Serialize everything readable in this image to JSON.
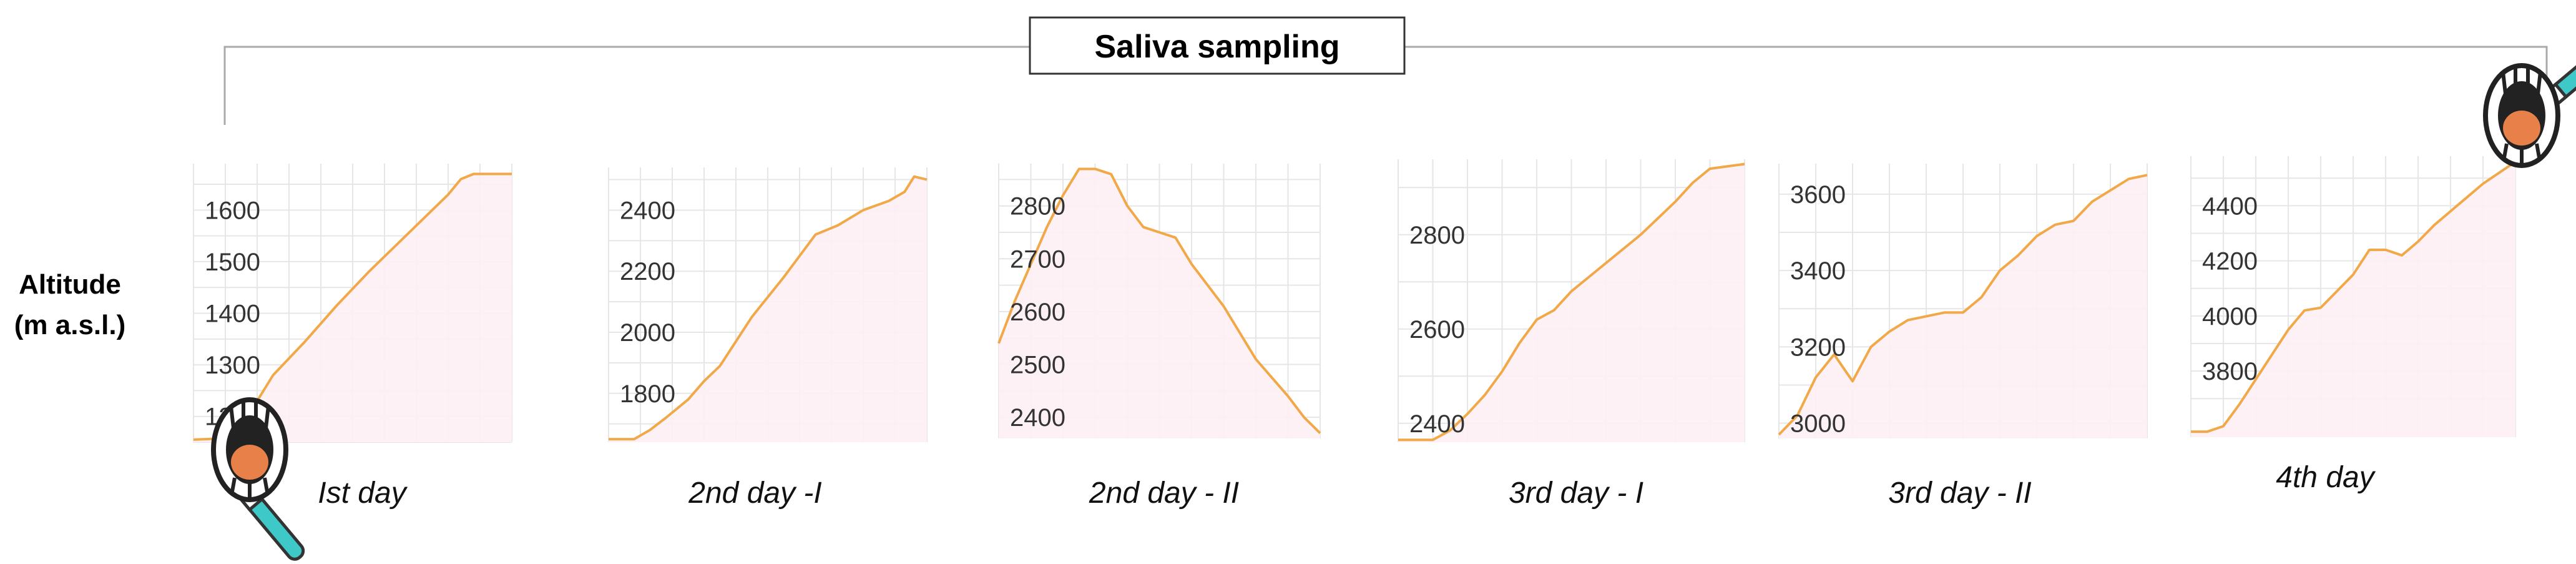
{
  "title": "Saliva sampling",
  "y_axis_label": [
    "Altitude",
    "(m a.s.l.)"
  ],
  "colors": {
    "line": "#F0A848",
    "fill": "#FDEFF4",
    "grid": "#E6E6E6",
    "bracket": "#AAAAAA",
    "tube": "#3FC8C8",
    "tongue": "#E8804A"
  },
  "icons": [
    "mouth-swab-icon-start",
    "mouth-swab-icon-end"
  ],
  "chart_data": [
    {
      "type": "line",
      "label": "Ist day",
      "yticks": [
        1200,
        1300,
        1400,
        1500,
        1600
      ],
      "ylim": [
        1150,
        1690
      ],
      "x": [
        0,
        0.08,
        0.13,
        0.18,
        0.25,
        0.35,
        0.45,
        0.55,
        0.65,
        0.75,
        0.8,
        0.84,
        0.88,
        1
      ],
      "y": [
        1155,
        1157,
        1165,
        1210,
        1280,
        1345,
        1415,
        1480,
        1540,
        1600,
        1630,
        1660,
        1670,
        1670
      ]
    },
    {
      "type": "line",
      "label": "2nd day -I",
      "yticks": [
        1800,
        2000,
        2200,
        2400
      ],
      "ylim": [
        1640,
        2540
      ],
      "x": [
        0,
        0.08,
        0.13,
        0.18,
        0.25,
        0.3,
        0.35,
        0.45,
        0.55,
        0.6,
        0.65,
        0.72,
        0.8,
        0.88,
        0.93,
        0.96,
        1
      ],
      "y": [
        1650,
        1650,
        1680,
        1720,
        1780,
        1840,
        1890,
        2050,
        2180,
        2250,
        2320,
        2350,
        2400,
        2430,
        2460,
        2510,
        2500
      ]
    },
    {
      "type": "line",
      "label": "2nd day - II",
      "yticks": [
        2400,
        2500,
        2600,
        2700,
        2800
      ],
      "ylim": [
        2360,
        2880
      ],
      "x": [
        0,
        0.05,
        0.1,
        0.15,
        0.2,
        0.25,
        0.3,
        0.35,
        0.4,
        0.45,
        0.5,
        0.55,
        0.6,
        0.7,
        0.8,
        0.9,
        0.95,
        1
      ],
      "y": [
        2540,
        2620,
        2690,
        2760,
        2820,
        2870,
        2870,
        2860,
        2800,
        2760,
        2750,
        2740,
        2690,
        2610,
        2510,
        2440,
        2400,
        2370
      ]
    },
    {
      "type": "line",
      "label": "3rd day - I",
      "yticks": [
        2400,
        2600,
        2800
      ],
      "ylim": [
        2360,
        2960
      ],
      "x": [
        0,
        0.1,
        0.15,
        0.2,
        0.25,
        0.3,
        0.35,
        0.4,
        0.45,
        0.5,
        0.55,
        0.6,
        0.7,
        0.8,
        0.85,
        0.9,
        1
      ],
      "y": [
        2365,
        2365,
        2385,
        2420,
        2460,
        2510,
        2570,
        2620,
        2640,
        2680,
        2710,
        2740,
        2800,
        2870,
        2910,
        2940,
        2950
      ]
    },
    {
      "type": "line",
      "label": "3rd day - II",
      "yticks": [
        3000,
        3200,
        3400,
        3600
      ],
      "ylim": [
        2960,
        3680
      ],
      "x": [
        0,
        0.05,
        0.1,
        0.15,
        0.2,
        0.25,
        0.3,
        0.35,
        0.4,
        0.45,
        0.5,
        0.55,
        0.6,
        0.65,
        0.7,
        0.75,
        0.8,
        0.85,
        0.9,
        0.95,
        1
      ],
      "y": [
        2970,
        3020,
        3120,
        3180,
        3110,
        3200,
        3240,
        3270,
        3280,
        3290,
        3290,
        3330,
        3400,
        3440,
        3490,
        3520,
        3530,
        3580,
        3610,
        3640,
        3650
      ]
    },
    {
      "type": "line",
      "label": "4th day",
      "yticks": [
        3800,
        4000,
        4200,
        4400
      ],
      "ylim": [
        3560,
        4580
      ],
      "x": [
        0,
        0.05,
        0.1,
        0.15,
        0.2,
        0.25,
        0.3,
        0.35,
        0.4,
        0.45,
        0.5,
        0.55,
        0.6,
        0.65,
        0.7,
        0.75,
        0.8,
        0.85,
        0.9,
        0.95,
        1
      ],
      "y": [
        3580,
        3580,
        3600,
        3680,
        3770,
        3860,
        3950,
        4020,
        4030,
        4090,
        4150,
        4240,
        4240,
        4220,
        4270,
        4330,
        4380,
        4430,
        4480,
        4520,
        4560
      ]
    }
  ]
}
